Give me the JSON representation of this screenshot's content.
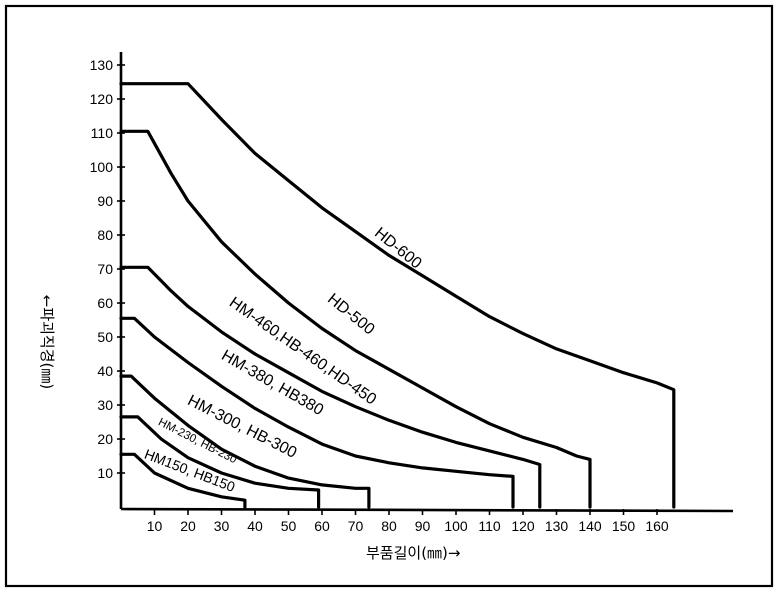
{
  "chart_data": {
    "type": "line",
    "xlabel": "부품길이(㎜)→",
    "ylabel": "←파괴직경(㎜)",
    "xlim": [
      0,
      180
    ],
    "ylim": [
      0,
      132
    ],
    "x_ticks": [
      10,
      20,
      30,
      40,
      50,
      60,
      70,
      80,
      90,
      100,
      110,
      120,
      130,
      140,
      150,
      160
    ],
    "y_ticks": [
      10,
      20,
      30,
      40,
      50,
      60,
      70,
      80,
      90,
      100,
      110,
      120,
      130
    ],
    "grid": false,
    "series": [
      {
        "name": "HD-600",
        "points": [
          [
            0,
            124.5
          ],
          [
            20,
            124.5
          ],
          [
            30,
            114
          ],
          [
            40,
            104
          ],
          [
            50,
            96
          ],
          [
            60,
            88
          ],
          [
            70,
            81
          ],
          [
            80,
            74
          ],
          [
            90,
            68
          ],
          [
            100,
            62
          ],
          [
            110,
            56
          ],
          [
            120,
            51
          ],
          [
            130,
            46.5
          ],
          [
            140,
            43
          ],
          [
            150,
            39.5
          ],
          [
            160,
            36.5
          ],
          [
            165,
            34.5
          ],
          [
            165,
            0
          ]
        ]
      },
      {
        "name": "HD-500",
        "points": [
          [
            0,
            110.5
          ],
          [
            8,
            110.5
          ],
          [
            15,
            98
          ],
          [
            20,
            90
          ],
          [
            30,
            78
          ],
          [
            40,
            68.5
          ],
          [
            50,
            60
          ],
          [
            60,
            52.5
          ],
          [
            70,
            46
          ],
          [
            80,
            40.5
          ],
          [
            90,
            35
          ],
          [
            100,
            29.5
          ],
          [
            110,
            24.5
          ],
          [
            120,
            20.5
          ],
          [
            130,
            17.5
          ],
          [
            136,
            15
          ],
          [
            140,
            14
          ],
          [
            140,
            0
          ]
        ]
      },
      {
        "name": "HM-460,HB-460,HD-450",
        "points": [
          [
            0,
            70.5
          ],
          [
            8,
            70.5
          ],
          [
            15,
            63.5
          ],
          [
            20,
            59
          ],
          [
            30,
            51.5
          ],
          [
            40,
            45
          ],
          [
            50,
            39.5
          ],
          [
            60,
            34
          ],
          [
            70,
            29.5
          ],
          [
            80,
            25.5
          ],
          [
            90,
            22
          ],
          [
            100,
            19
          ],
          [
            110,
            16.5
          ],
          [
            120,
            14
          ],
          [
            125,
            12.5
          ],
          [
            125,
            0
          ]
        ]
      },
      {
        "name": "HM-380, HB380",
        "points": [
          [
            0,
            55.5
          ],
          [
            4,
            55.5
          ],
          [
            10,
            50
          ],
          [
            20,
            42.5
          ],
          [
            30,
            35.5
          ],
          [
            40,
            29
          ],
          [
            50,
            23.5
          ],
          [
            60,
            18.5
          ],
          [
            70,
            15
          ],
          [
            80,
            13
          ],
          [
            90,
            11.5
          ],
          [
            100,
            10.5
          ],
          [
            110,
            9.5
          ],
          [
            117,
            9
          ],
          [
            117,
            0
          ]
        ]
      },
      {
        "name": "HM-300, HB-300",
        "points": [
          [
            0,
            38.5
          ],
          [
            3,
            38.5
          ],
          [
            10,
            32
          ],
          [
            20,
            24
          ],
          [
            30,
            17
          ],
          [
            40,
            12
          ],
          [
            50,
            8.5
          ],
          [
            60,
            6.5
          ],
          [
            70,
            5.5
          ],
          [
            74,
            5.5
          ],
          [
            74,
            0
          ]
        ]
      },
      {
        "name": "HM-230, HB-230",
        "points": [
          [
            0,
            26.5
          ],
          [
            5,
            26.5
          ],
          [
            12,
            20
          ],
          [
            20,
            14.5
          ],
          [
            30,
            10
          ],
          [
            40,
            7
          ],
          [
            50,
            5.5
          ],
          [
            59,
            5
          ],
          [
            59,
            0
          ]
        ]
      },
      {
        "name": "HM150, HB150",
        "points": [
          [
            0,
            15.5
          ],
          [
            4,
            15.5
          ],
          [
            10,
            10
          ],
          [
            20,
            5.5
          ],
          [
            30,
            3
          ],
          [
            37,
            2
          ],
          [
            37,
            0
          ]
        ]
      }
    ]
  }
}
